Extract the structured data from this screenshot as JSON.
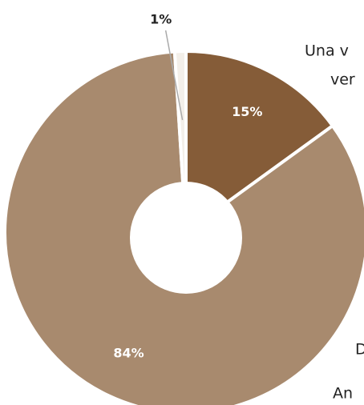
{
  "chart_data": {
    "type": "pie",
    "values": [
      15,
      84,
      1
    ],
    "value_labels": [
      "15%",
      "84%",
      "1%"
    ],
    "colors": [
      "#855c38",
      "#a88a6e",
      "#f3efe9"
    ],
    "texts": [
      "Una v",
      "ver",
      "D",
      "An"
    ]
  }
}
